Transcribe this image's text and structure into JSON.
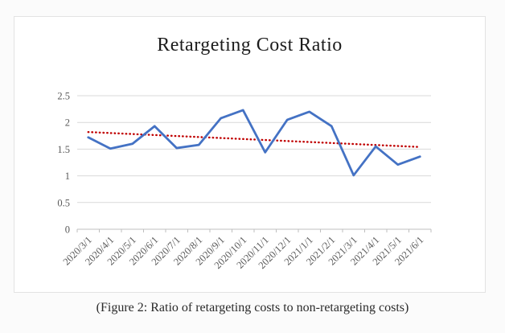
{
  "figure": {
    "title": "Retargeting Cost Ratio",
    "caption": "(Figure 2: Ratio of retargeting costs to non-retargeting costs)"
  },
  "chart_data": {
    "type": "line",
    "title": "Retargeting Cost Ratio",
    "categories": [
      "2020/3/1",
      "2020/4/1",
      "2020/5/1",
      "2020/6/1",
      "2020/7/1",
      "2020/8/1",
      "2020/9/1",
      "2020/10/1",
      "2020/11/1",
      "2020/12/1",
      "2021/1/1",
      "2021/2/1",
      "2021/3/1",
      "2021/4/1",
      "2021/5/1",
      "2021/6/1"
    ],
    "series": [
      {
        "name": "retargeting-cost-ratio",
        "color": "#4472C4",
        "values": [
          1.72,
          1.51,
          1.6,
          1.93,
          1.52,
          1.58,
          2.08,
          2.23,
          1.44,
          2.05,
          2.2,
          1.93,
          1.01,
          1.55,
          1.21,
          1.36
        ]
      }
    ],
    "trendline": {
      "name": "linear-trend",
      "style": "dotted",
      "color": "#C00000",
      "start": 1.82,
      "end": 1.54
    },
    "xlabel": "",
    "ylabel": "",
    "ylim": [
      0,
      2.5
    ],
    "yticks": [
      0,
      0.5,
      1,
      1.5,
      2,
      2.5
    ],
    "ytick_labels": [
      "0",
      "0.5",
      "1",
      "1.5",
      "2",
      "2.5"
    ],
    "grid": true,
    "legend": "none",
    "colors": {
      "gridline": "#d9d9d9",
      "axis_line": "#bfbfbf",
      "tick_label": "#595959"
    }
  }
}
